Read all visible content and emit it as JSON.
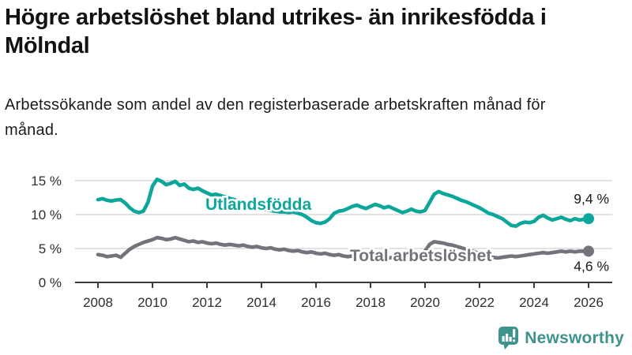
{
  "header": {
    "title": "Högre arbetslöshet bland utrikes- än inrikesfödda i Mölndal",
    "subtitle": "Arbetssökande som andel av den registerbaserade arbetskraften månad för månad."
  },
  "chart_data": {
    "type": "line",
    "title": "Högre arbetslöshet bland utrikes- än inrikesfödda i Mölndal",
    "subtitle": "Arbetssökande som andel av den registerbaserade arbetskraften månad för månad.",
    "xlabel": "",
    "ylabel": "",
    "x_start": 2008,
    "x_step_years": 0.1666667,
    "x_ticks": [
      2008,
      2010,
      2012,
      2014,
      2016,
      2018,
      2020,
      2022,
      2024,
      2026
    ],
    "y_ticks": [
      {
        "value": 0,
        "label": "0 %"
      },
      {
        "value": 5,
        "label": "5 %"
      },
      {
        "value": 10,
        "label": "10 %"
      },
      {
        "value": 15,
        "label": "15 %"
      }
    ],
    "ylim": [
      0,
      16.5
    ],
    "xlim": [
      2008,
      2026.8
    ],
    "grid": true,
    "legend_position": "inline-labels",
    "series": [
      {
        "name": "Utlandsfödda",
        "color": "#0CA69B",
        "end_label": "9,4 %",
        "end_value": 9.4,
        "values": [
          12.2,
          12.35,
          12.1,
          12.0,
          12.15,
          12.2,
          11.7,
          11.0,
          10.5,
          10.3,
          10.5,
          11.8,
          14.2,
          15.2,
          14.9,
          14.4,
          14.6,
          14.9,
          14.3,
          14.5,
          13.9,
          13.7,
          13.9,
          13.5,
          13.2,
          12.9,
          13.0,
          12.8,
          12.6,
          12.4,
          12.2,
          12.0,
          11.8,
          11.5,
          11.3,
          11.1,
          10.9,
          10.7,
          10.6,
          10.5,
          10.4,
          10.4,
          10.3,
          10.4,
          10.2,
          10.0,
          9.6,
          9.1,
          8.8,
          8.7,
          8.9,
          9.4,
          10.2,
          10.5,
          10.6,
          10.9,
          11.2,
          11.4,
          11.1,
          10.9,
          11.2,
          11.5,
          11.3,
          11.0,
          11.2,
          10.9,
          10.6,
          10.3,
          10.5,
          10.8,
          10.5,
          10.4,
          10.6,
          11.8,
          13.0,
          13.4,
          13.1,
          12.9,
          12.7,
          12.4,
          12.1,
          11.9,
          11.6,
          11.3,
          11.0,
          10.6,
          10.2,
          10.0,
          9.7,
          9.4,
          8.9,
          8.4,
          8.3,
          8.7,
          8.9,
          8.8,
          9.0,
          9.6,
          9.9,
          9.5,
          9.2,
          9.4,
          9.6,
          9.3,
          9.1,
          9.4,
          9.2,
          9.3,
          9.4
        ]
      },
      {
        "name": "Total arbetslöshet",
        "color": "#73737B",
        "end_label": "4,6 %",
        "end_value": 4.6,
        "values": [
          4.1,
          4.0,
          3.8,
          3.9,
          4.0,
          3.7,
          4.3,
          4.9,
          5.3,
          5.6,
          5.9,
          6.1,
          6.3,
          6.6,
          6.5,
          6.3,
          6.4,
          6.6,
          6.4,
          6.2,
          6.0,
          6.1,
          5.9,
          6.0,
          5.8,
          5.7,
          5.8,
          5.6,
          5.5,
          5.6,
          5.5,
          5.4,
          5.5,
          5.3,
          5.2,
          5.3,
          5.1,
          5.0,
          5.1,
          4.9,
          4.8,
          4.9,
          4.7,
          4.6,
          4.7,
          4.5,
          4.4,
          4.5,
          4.3,
          4.2,
          4.3,
          4.1,
          4.0,
          4.1,
          3.9,
          3.8,
          3.9,
          3.7,
          3.6,
          3.7,
          3.6,
          3.7,
          3.6,
          3.7,
          3.6,
          3.7,
          3.8,
          3.9,
          4.0,
          4.1,
          4.2,
          4.3,
          4.6,
          5.6,
          6.0,
          5.9,
          5.8,
          5.6,
          5.5,
          5.3,
          5.1,
          4.9,
          4.7,
          4.5,
          4.2,
          4.0,
          3.9,
          3.7,
          3.6,
          3.7,
          3.8,
          3.9,
          3.8,
          3.9,
          4.0,
          4.1,
          4.2,
          4.3,
          4.4,
          4.3,
          4.4,
          4.5,
          4.6,
          4.5,
          4.6,
          4.5,
          4.6,
          4.6,
          4.6
        ]
      }
    ]
  },
  "branding": {
    "logo_text": "Newsworthy",
    "brand_color": "#3F938D"
  }
}
